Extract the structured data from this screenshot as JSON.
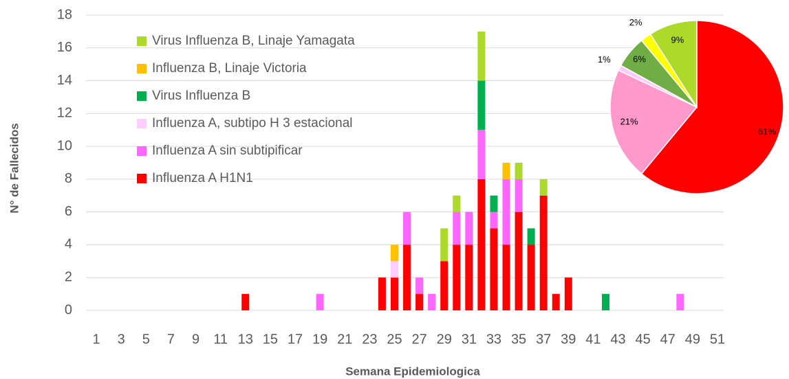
{
  "chart_data": [
    {
      "type": "bar",
      "stacked": true,
      "x_label": "Semana Epidemiologica",
      "y_label": "N° de Fallecidos",
      "categories": [
        "1",
        null,
        "3",
        null,
        "5",
        null,
        "7",
        null,
        "9",
        null,
        "11",
        null,
        "13",
        null,
        "15",
        null,
        "17",
        null,
        "19",
        null,
        "21",
        null,
        "23",
        null,
        "25",
        null,
        "27",
        null,
        "29",
        null,
        "31",
        null,
        "33",
        null,
        "35",
        null,
        "37",
        null,
        "39",
        null,
        "41",
        null,
        "43",
        null,
        "45",
        null,
        "47",
        null,
        "49",
        null,
        "51"
      ],
      "ylim": [
        0,
        18
      ],
      "yticks": [
        0,
        2,
        4,
        6,
        8,
        10,
        12,
        14,
        16,
        18
      ],
      "grid": true,
      "series": [
        {
          "name": "Influenza A H1N1",
          "color": "#ff0000",
          "values": [
            0,
            0,
            0,
            0,
            0,
            0,
            0,
            0,
            0,
            0,
            0,
            0,
            1,
            0,
            0,
            0,
            0,
            0,
            0,
            0,
            0,
            0,
            0,
            2,
            2,
            4,
            1,
            0,
            3,
            4,
            4,
            8,
            5,
            4,
            6,
            4,
            7,
            1,
            2,
            0,
            0,
            0,
            0,
            0,
            0,
            0,
            0,
            0,
            0,
            0,
            0
          ]
        },
        {
          "name": "Influenza A sin subtipificar",
          "color": "#ff66ff",
          "values": [
            0,
            0,
            0,
            0,
            0,
            0,
            0,
            0,
            0,
            0,
            0,
            0,
            0,
            0,
            0,
            0,
            0,
            0,
            1,
            0,
            0,
            0,
            0,
            0,
            0,
            2,
            1,
            1,
            0,
            2,
            2,
            3,
            1,
            4,
            2,
            0,
            0,
            0,
            0,
            0,
            0,
            0,
            0,
            0,
            0,
            0,
            0,
            1,
            0,
            0,
            0
          ]
        },
        {
          "name": "Influenza A, subtipo H 3 estacional",
          "color": "#ffccff",
          "values": [
            0,
            0,
            0,
            0,
            0,
            0,
            0,
            0,
            0,
            0,
            0,
            0,
            0,
            0,
            0,
            0,
            0,
            0,
            0,
            0,
            0,
            0,
            0,
            0,
            1,
            0,
            0,
            0,
            0,
            0,
            0,
            0,
            0,
            0,
            0,
            0,
            0,
            0,
            0,
            0,
            0,
            0,
            0,
            0,
            0,
            0,
            0,
            0,
            0,
            0,
            0
          ]
        },
        {
          "name": "Virus Influenza B",
          "color": "#00b050",
          "values": [
            0,
            0,
            0,
            0,
            0,
            0,
            0,
            0,
            0,
            0,
            0,
            0,
            0,
            0,
            0,
            0,
            0,
            0,
            0,
            0,
            0,
            0,
            0,
            0,
            0,
            0,
            0,
            0,
            0,
            0,
            0,
            3,
            1,
            0,
            0,
            1,
            0,
            0,
            0,
            0,
            0,
            1,
            0,
            0,
            0,
            0,
            0,
            0,
            0,
            0,
            0
          ]
        },
        {
          "name": "Influenza B, Linaje Victoria",
          "color": "#ffc000",
          "values": [
            0,
            0,
            0,
            0,
            0,
            0,
            0,
            0,
            0,
            0,
            0,
            0,
            0,
            0,
            0,
            0,
            0,
            0,
            0,
            0,
            0,
            0,
            0,
            0,
            1,
            0,
            0,
            0,
            0,
            0,
            0,
            0,
            0,
            1,
            0,
            0,
            0,
            0,
            0,
            0,
            0,
            0,
            0,
            0,
            0,
            0,
            0,
            0,
            0,
            0,
            0
          ]
        },
        {
          "name": "Virus Influenza B, Linaje Yamagata",
          "color": "#add92a",
          "values": [
            0,
            0,
            0,
            0,
            0,
            0,
            0,
            0,
            0,
            0,
            0,
            0,
            0,
            0,
            0,
            0,
            0,
            0,
            0,
            0,
            0,
            0,
            0,
            0,
            0,
            0,
            0,
            0,
            2,
            1,
            0,
            3,
            0,
            0,
            1,
            0,
            1,
            0,
            0,
            0,
            0,
            0,
            0,
            0,
            0,
            0,
            0,
            0,
            0,
            0,
            0
          ]
        }
      ]
    },
    {
      "type": "pie",
      "values": [
        61,
        21,
        1,
        6,
        2,
        9
      ],
      "value_labels": [
        "61%",
        "21%",
        "1%",
        "6%",
        "2%",
        "9%"
      ],
      "colors": [
        "#ff0000",
        "#ff99cc",
        "#ffccff",
        "#70ad47",
        "#ffff00",
        "#add92a"
      ]
    }
  ]
}
